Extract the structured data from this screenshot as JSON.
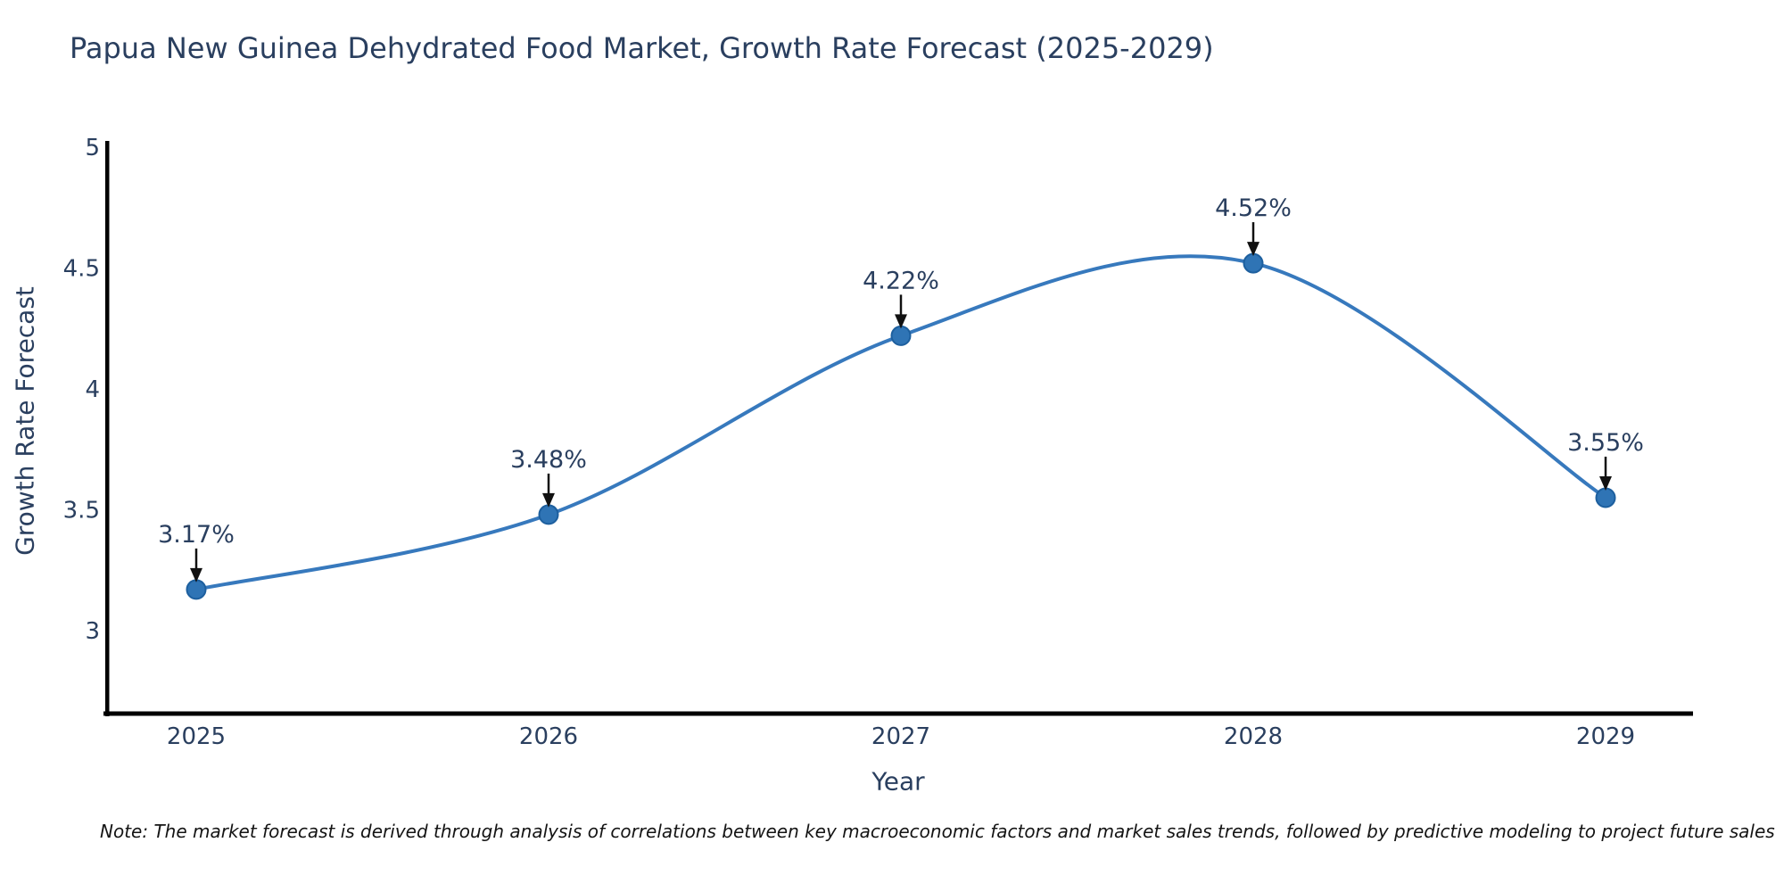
{
  "chart_data": {
    "type": "line",
    "title": "Papua New Guinea Dehydrated Food Market, Growth Rate Forecast (2025-2029)",
    "xlabel": "Year",
    "ylabel": "Growth Rate Forecast",
    "x": [
      2025,
      2026,
      2027,
      2028,
      2029
    ],
    "xtick_labels": [
      "2025",
      "2026",
      "2027",
      "2028",
      "2029"
    ],
    "values": [
      3.17,
      3.48,
      4.22,
      4.52,
      3.55
    ],
    "point_labels": [
      "3.17%",
      "3.48%",
      "4.22%",
      "4.52%",
      "3.55%"
    ],
    "yticks": [
      3,
      3.5,
      4,
      4.5,
      5
    ],
    "ytick_labels": [
      "3",
      "3.5",
      "4",
      "4.5",
      "5"
    ],
    "ylim": [
      2.65,
      5.0
    ],
    "xlim": [
      2024.74,
      2029.25
    ],
    "grid": false,
    "legend": "none",
    "line_shape": "spline",
    "line_color": "#3779bd",
    "marker_color": "#2f74b5",
    "marker_edge_color": "#1d5f9e",
    "axis_color": "#000000",
    "text_color": "#2a3f5f",
    "annotation_arrow_color": "#111111",
    "note": "Note: The market forecast is derived through analysis of correlations between key macroeconomic factors and market sales trends, followed by predictive modeling to project future sales"
  }
}
